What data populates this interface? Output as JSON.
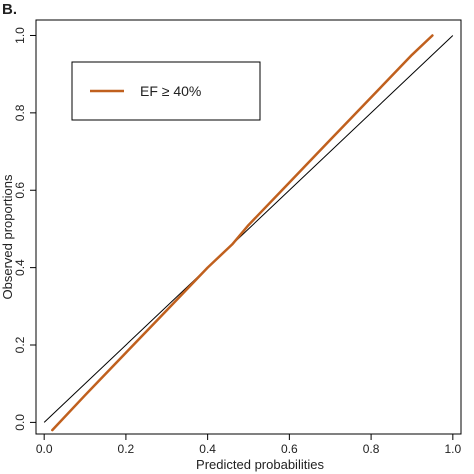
{
  "panel_label": "B.",
  "chart_data": {
    "type": "line",
    "title": "",
    "xlabel": "Predicted probabilities",
    "ylabel": "Observed proportions",
    "xlim": [
      -0.02,
      1.02
    ],
    "ylim": [
      -0.03,
      1.04
    ],
    "xticks": [
      0.0,
      0.2,
      0.4,
      0.6,
      0.8,
      1.0
    ],
    "yticks": [
      0.0,
      0.2,
      0.4,
      0.6,
      0.8,
      1.0
    ],
    "xtick_labels": [
      "0.0",
      "0.2",
      "0.4",
      "0.6",
      "0.8",
      "1.0"
    ],
    "ytick_labels": [
      "0.0",
      "0.2",
      "0.4",
      "0.6",
      "0.8",
      "1.0"
    ],
    "grid": false,
    "legend_position": "top-left",
    "reference_line": {
      "x": [
        0.0,
        1.0
      ],
      "y": [
        0.0,
        1.0
      ],
      "color": "#000000"
    },
    "series": [
      {
        "name": "EF ≥ 40%",
        "color": "#C0601E",
        "x": [
          0.02,
          0.1,
          0.2,
          0.3,
          0.4,
          0.46,
          0.5,
          0.6,
          0.7,
          0.8,
          0.9,
          0.95
        ],
        "y": [
          -0.02,
          0.07,
          0.18,
          0.29,
          0.4,
          0.46,
          0.51,
          0.62,
          0.73,
          0.84,
          0.95,
          1.0
        ]
      }
    ]
  }
}
